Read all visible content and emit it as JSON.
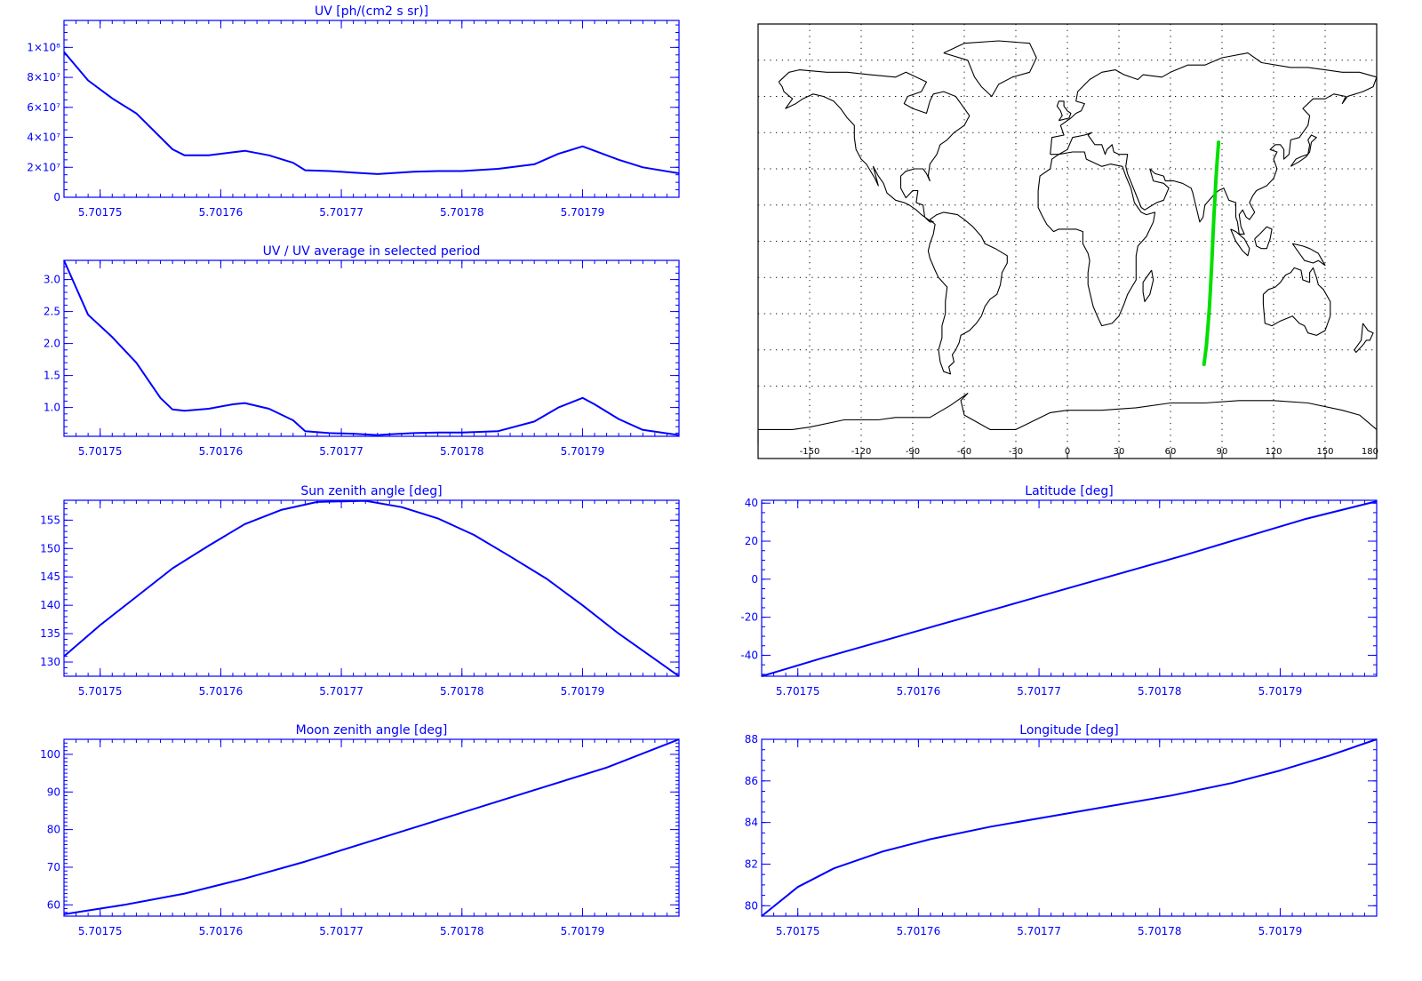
{
  "colors": {
    "axis": "#0000ff",
    "line": "#0000ff",
    "map_line": "#000000",
    "track": "#00e000",
    "background": "#ffffff"
  },
  "x_axis_ticks": [
    "5.70175",
    "5.70176",
    "5.70177",
    "5.70178",
    "5.70179"
  ],
  "chart_data": [
    {
      "id": "uv",
      "type": "line",
      "title": "UV [ph/(cm2 s sr)]",
      "xlim": [
        5.701747,
        5.701798
      ],
      "ylim": [
        0,
        118000000
      ],
      "yticks": [
        {
          "v": 0,
          "label": "0"
        },
        {
          "v": 20000000,
          "label": "2×10⁷"
        },
        {
          "v": 40000000,
          "label": "4×10⁷"
        },
        {
          "v": 60000000,
          "label": "6×10⁷"
        },
        {
          "v": 80000000,
          "label": "8×10⁷"
        },
        {
          "v": 100000000,
          "label": "1×10⁸"
        }
      ],
      "ytick_step": 5000000,
      "x": [
        5.701747,
        5.701749,
        5.701751,
        5.701753,
        5.701755,
        5.701756,
        5.701757,
        5.701759,
        5.701761,
        5.701762,
        5.701764,
        5.701766,
        5.701767,
        5.701769,
        5.701771,
        5.701773,
        5.701774,
        5.701776,
        5.701778,
        5.70178,
        5.701783,
        5.701786,
        5.701788,
        5.70179,
        5.701791,
        5.701793,
        5.701795,
        5.701798
      ],
      "values": [
        97000000,
        78000000,
        66000000,
        56000000,
        40000000,
        32000000,
        28000000,
        28000000,
        30000000,
        31000000,
        28000000,
        23000000,
        18000000,
        17500000,
        16500000,
        15500000,
        16000000,
        17000000,
        17500000,
        17500000,
        19000000,
        22000000,
        29000000,
        34000000,
        31000000,
        25000000,
        20000000,
        16000000
      ]
    },
    {
      "id": "uv-ratio",
      "type": "line",
      "title": "UV / UV average in selected period",
      "xlim": [
        5.701747,
        5.701798
      ],
      "ylim": [
        0.55,
        3.3
      ],
      "yticks": [
        {
          "v": 1.0,
          "label": "1.0"
        },
        {
          "v": 1.5,
          "label": "1.5"
        },
        {
          "v": 2.0,
          "label": "2.0"
        },
        {
          "v": 2.5,
          "label": "2.5"
        },
        {
          "v": 3.0,
          "label": "3.0"
        }
      ],
      "ytick_step": 0.1,
      "x": [
        5.701747,
        5.701749,
        5.701751,
        5.701753,
        5.701755,
        5.701756,
        5.701757,
        5.701759,
        5.701761,
        5.701762,
        5.701764,
        5.701766,
        5.701767,
        5.701769,
        5.701771,
        5.701773,
        5.701774,
        5.701776,
        5.701778,
        5.70178,
        5.701783,
        5.701786,
        5.701788,
        5.70179,
        5.701791,
        5.701793,
        5.701795,
        5.701798
      ],
      "values": [
        3.3,
        2.45,
        2.1,
        1.7,
        1.15,
        0.97,
        0.95,
        0.98,
        1.05,
        1.07,
        0.98,
        0.8,
        0.63,
        0.6,
        0.59,
        0.57,
        0.58,
        0.6,
        0.61,
        0.61,
        0.63,
        0.78,
        1.0,
        1.15,
        1.05,
        0.82,
        0.65,
        0.57
      ]
    },
    {
      "id": "sun-zenith",
      "type": "line",
      "title": "Sun zenith angle [deg]",
      "xlim": [
        5.701747,
        5.701798
      ],
      "ylim": [
        127.5,
        158.5
      ],
      "yticks": [
        {
          "v": 130,
          "label": "130"
        },
        {
          "v": 135,
          "label": "135"
        },
        {
          "v": 140,
          "label": "140"
        },
        {
          "v": 145,
          "label": "145"
        },
        {
          "v": 150,
          "label": "150"
        },
        {
          "v": 155,
          "label": "155"
        }
      ],
      "ytick_step": 1,
      "x": [
        5.701747,
        5.70175,
        5.701753,
        5.701756,
        5.701759,
        5.701762,
        5.701765,
        5.701768,
        5.701772,
        5.701775,
        5.701778,
        5.701781,
        5.701784,
        5.701787,
        5.70179,
        5.701793,
        5.701796,
        5.701798
      ],
      "values": [
        131,
        136.5,
        141.5,
        146.5,
        150.5,
        154.3,
        156.8,
        158.2,
        158.4,
        157.3,
        155.3,
        152.4,
        148.6,
        144.7,
        140,
        135,
        130.5,
        127.5
      ]
    },
    {
      "id": "latitude",
      "type": "line",
      "title": "Latitude [deg]",
      "xlim": [
        5.701747,
        5.701798
      ],
      "ylim": [
        -51,
        41.5
      ],
      "yticks": [
        {
          "v": -40,
          "label": "-40"
        },
        {
          "v": -20,
          "label": "-20"
        },
        {
          "v": 0,
          "label": "0"
        },
        {
          "v": 20,
          "label": "20"
        },
        {
          "v": 40,
          "label": "40"
        }
      ],
      "ytick_step": 5,
      "x": [
        5.701747,
        5.701752,
        5.701757,
        5.701762,
        5.701767,
        5.701772,
        5.701777,
        5.701782,
        5.701787,
        5.701792,
        5.701798
      ],
      "values": [
        -51,
        -41.5,
        -32.5,
        -23.5,
        -14.5,
        -5.5,
        3.5,
        12.5,
        22,
        31.5,
        41
      ]
    },
    {
      "id": "moon-zenith",
      "type": "line",
      "title": "Moon zenith angle [deg]",
      "xlim": [
        5.701747,
        5.701798
      ],
      "ylim": [
        57,
        104
      ],
      "yticks": [
        {
          "v": 60,
          "label": "60"
        },
        {
          "v": 70,
          "label": "70"
        },
        {
          "v": 80,
          "label": "80"
        },
        {
          "v": 90,
          "label": "90"
        },
        {
          "v": 100,
          "label": "100"
        }
      ],
      "ytick_step": 1,
      "x": [
        5.701747,
        5.701752,
        5.701757,
        5.701762,
        5.701767,
        5.701772,
        5.701777,
        5.701782,
        5.701787,
        5.701792,
        5.701798
      ],
      "values": [
        57.5,
        60,
        63,
        67,
        71.5,
        76.5,
        81.5,
        86.5,
        91.5,
        96.5,
        104
      ]
    },
    {
      "id": "longitude",
      "type": "line",
      "title": "Longitude [deg]",
      "xlim": [
        5.701747,
        5.701798
      ],
      "ylim": [
        79.5,
        88
      ],
      "yticks": [
        {
          "v": 80,
          "label": "80"
        },
        {
          "v": 82,
          "label": "82"
        },
        {
          "v": 84,
          "label": "84"
        },
        {
          "v": 86,
          "label": "86"
        },
        {
          "v": 88,
          "label": "88"
        }
      ],
      "ytick_step": 0.5,
      "x": [
        5.701747,
        5.70175,
        5.701753,
        5.701757,
        5.701761,
        5.701766,
        5.701771,
        5.701776,
        5.701781,
        5.701786,
        5.70179,
        5.701794,
        5.701798
      ],
      "values": [
        79.5,
        80.9,
        81.8,
        82.6,
        83.2,
        83.8,
        84.3,
        84.8,
        85.3,
        85.9,
        86.5,
        87.2,
        88
      ]
    },
    {
      "id": "ground-track-map",
      "type": "scatter",
      "xlim": [
        -180,
        180
      ],
      "ylim": [
        -90,
        90
      ],
      "xticks": [
        {
          "v": -150,
          "label": "-150"
        },
        {
          "v": -120,
          "label": "-120"
        },
        {
          "v": -90,
          "label": "-90"
        },
        {
          "v": -60,
          "label": "-60"
        },
        {
          "v": -30,
          "label": "-30"
        },
        {
          "v": 0,
          "label": "0"
        },
        {
          "v": 30,
          "label": "30"
        },
        {
          "v": 60,
          "label": "60"
        },
        {
          "v": 90,
          "label": "90"
        },
        {
          "v": 120,
          "label": "120"
        },
        {
          "v": 150,
          "label": "150"
        },
        {
          "v": 180,
          "label": "180"
        }
      ],
      "grid": true,
      "track": {
        "x": [
          79.5,
          80.9,
          81.8,
          82.6,
          83.2,
          83.8,
          84.3,
          84.8,
          85.3,
          85.9,
          86.5,
          87.2,
          88
        ],
        "y": [
          -51,
          -43.3,
          -35.6,
          -27.9,
          -20.2,
          -12.5,
          -4.8,
          2.9,
          10.6,
          18.3,
          26,
          33.7,
          41
        ]
      }
    }
  ]
}
